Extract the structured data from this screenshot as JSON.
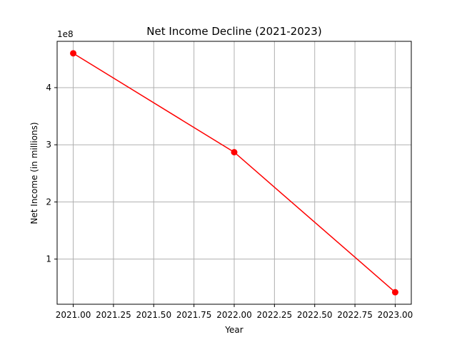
{
  "chart_data": {
    "type": "line",
    "title": "Net Income Decline (2021-2023)",
    "xlabel": "Year",
    "ylabel": "Net Income (in millions)",
    "y_offset_label": "1e8",
    "x": [
      2021.0,
      2022.0,
      2023.0
    ],
    "series": [
      {
        "values": [
          460000000,
          287000000,
          42000000
        ],
        "color": "#ff0000",
        "marker": "circle"
      }
    ],
    "xlim": [
      2020.9,
      2023.1
    ],
    "ylim": [
      21000000,
      481000000
    ],
    "x_ticks": [
      2021.0,
      2021.25,
      2021.5,
      2021.75,
      2022.0,
      2022.25,
      2022.5,
      2022.75,
      2023.0
    ],
    "x_tick_labels": [
      "2021.00",
      "2021.25",
      "2021.50",
      "2021.75",
      "2022.00",
      "2022.25",
      "2022.50",
      "2022.75",
      "2023.00"
    ],
    "y_ticks": [
      100000000,
      200000000,
      300000000,
      400000000
    ],
    "y_tick_labels": [
      "1",
      "2",
      "3",
      "4"
    ],
    "grid": true,
    "legend": "none"
  }
}
